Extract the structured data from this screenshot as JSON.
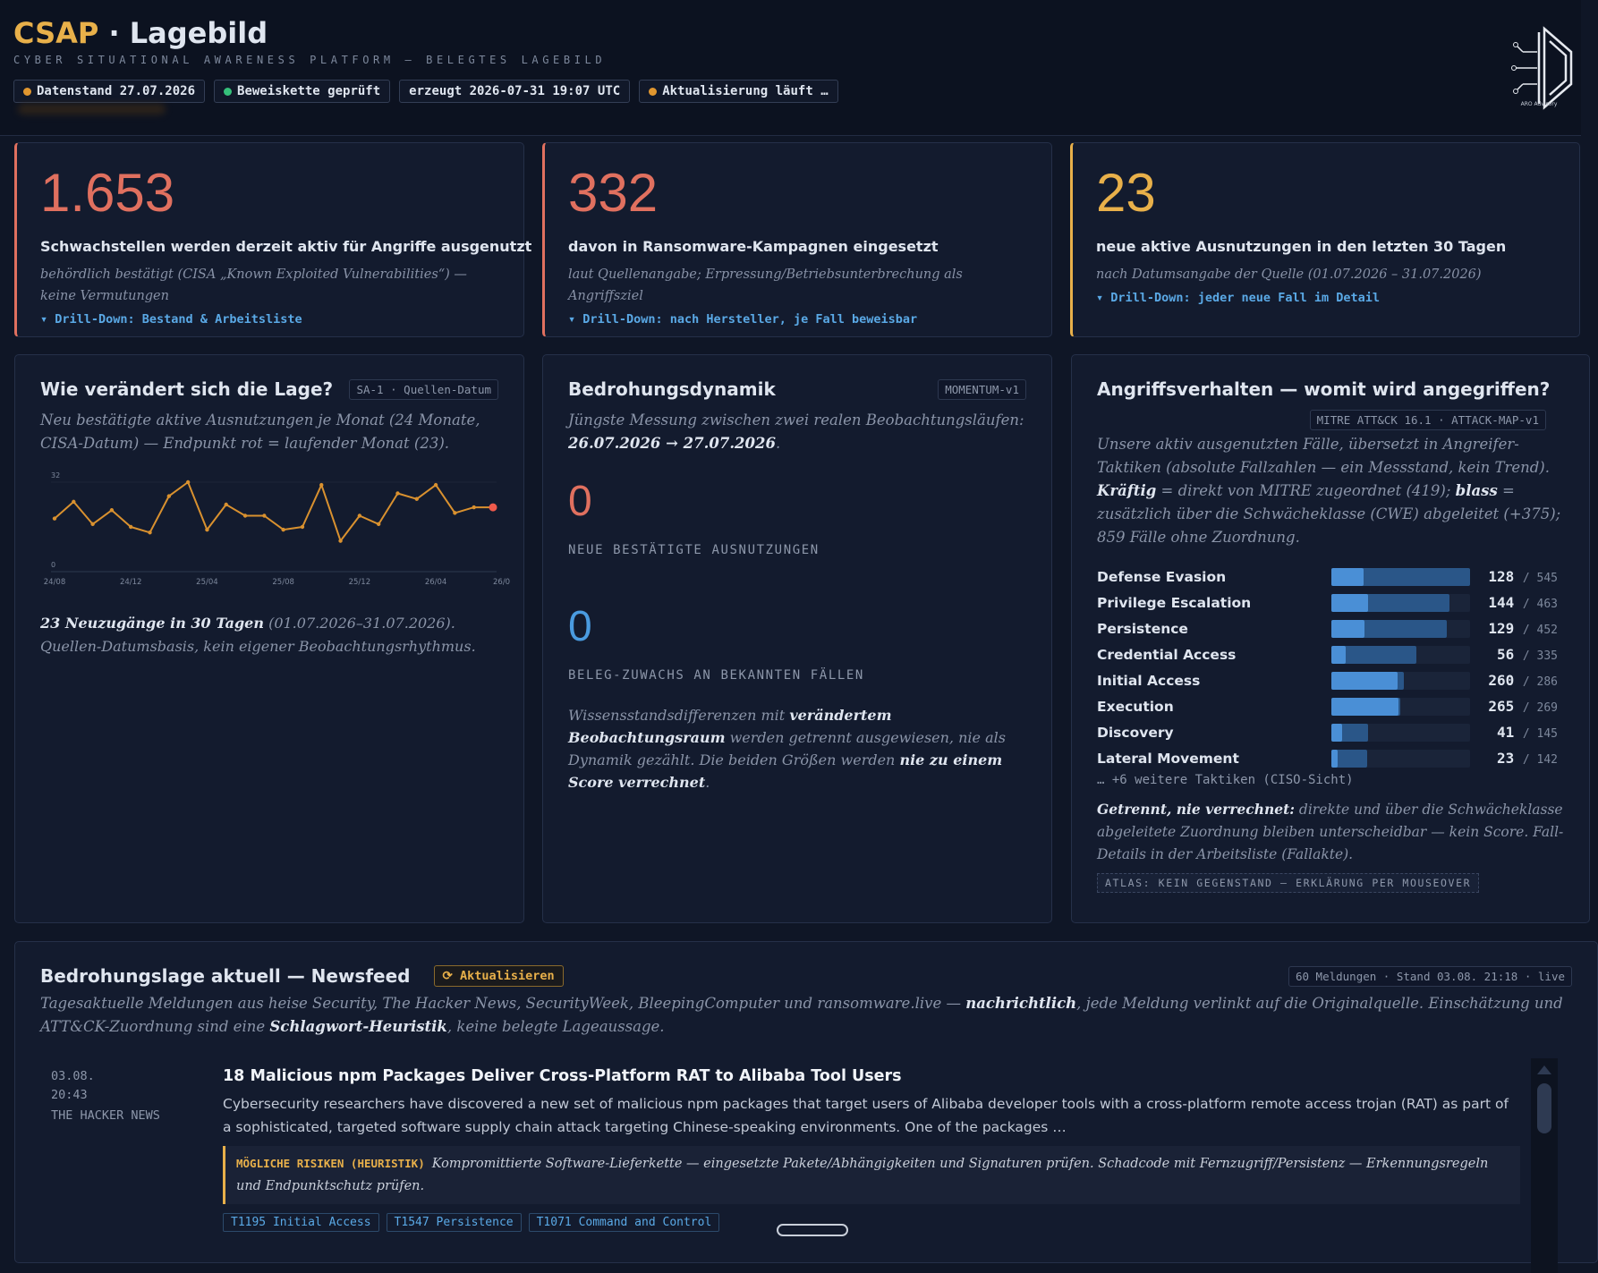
{
  "header": {
    "brand": "CSAP",
    "title": "· Lagebild",
    "subtitle": "CYBER SITUATIONAL AWARENESS PLATFORM — BELEGTES LAGEBILD",
    "chips": [
      {
        "text": "Datenstand 27.07.2026",
        "dot": "#e0962f"
      },
      {
        "text": "Beweiskette geprüft",
        "dot": "#35c07a"
      },
      {
        "text": "erzeugt 2026-07-31 19:07 UTC"
      },
      {
        "text": "Aktualisierung läuft …",
        "dot": "#e0962f"
      }
    ],
    "logo": "ARO Advisory"
  },
  "kpis": [
    {
      "value": "1.653",
      "color": "#e0705f",
      "label": "Schwachstellen werden derzeit aktiv für Angriffe ausgenutzt",
      "note": "behördlich bestätigt (CISA „Known Exploited Vulnerabilities“) — keine Vermutungen",
      "link": "▾ Drill-Down: Bestand & Arbeitsliste"
    },
    {
      "value": "332",
      "color": "#e0705f",
      "label": "davon in Ransomware-Kampagnen eingesetzt",
      "note": "laut Quellenangabe; Erpressung/Betriebsunterbrechung als Angriffsziel",
      "link": "▾ Drill-Down: nach Hersteller, je Fall beweisbar"
    },
    {
      "value": "23",
      "color": "#e8b04a",
      "label": "neue aktive Ausnutzungen in den letzten 30 Tagen",
      "note": "nach Datumsangabe der Quelle (01.07.2026 – 31.07.2026)",
      "link": "▾ Drill-Down: jeder neue Fall im Detail"
    }
  ],
  "trend": {
    "title": "Wie verändert sich die Lage?",
    "tag": "SA-1 · Quellen-Datum",
    "desc": "Neu bestätigte aktive Ausnutzungen je Monat (24 Monate, CISA-Datum) — Endpunkt rot = laufender Monat (23).",
    "chart": {
      "type": "line",
      "color": "#d9912f",
      "highlight_color": "#ef5a4c",
      "categories": [
        "24/08",
        null,
        null,
        null,
        "24/12",
        null,
        null,
        null,
        "25/04",
        null,
        null,
        null,
        "25/08",
        null,
        null,
        null,
        "25/12",
        null,
        null,
        null,
        "26/04",
        null,
        null,
        "26/0"
      ],
      "values": [
        19,
        25,
        17,
        22,
        16,
        14,
        27,
        32,
        15,
        24,
        20,
        20,
        15,
        16,
        31,
        11,
        20,
        17,
        28,
        26,
        31,
        21,
        23,
        23
      ],
      "ylim": [
        0,
        32
      ],
      "yticks": [
        0,
        32
      ]
    },
    "footer": [
      {
        "text": "23 Neuzugänge in 30 Tagen",
        "strong": true
      },
      {
        "text": " (01.07.2026–31.07.2026). Quellen-Datumsbasis, kein eigener Beobachtungsrhythmus."
      }
    ]
  },
  "dynamics": {
    "title": "Bedrohungsdynamik",
    "tag": "MOMENTUM-v1",
    "desc": [
      {
        "text": "Jüngste Messung zwischen zwei realen Beobachtungsläufen: "
      },
      {
        "text": "26.07.2026 → 27.07.2026",
        "strong": true
      },
      {
        "text": "."
      }
    ],
    "metrics": [
      {
        "value": 0,
        "label": "NEUE BESTÄTIGTE AUSNUTZUNGEN",
        "color": "#e0705f"
      },
      {
        "value": 0,
        "label": "BELEG-ZUWACHS AN BEKANNTEN FÄLLEN",
        "color": "#4a9be0"
      }
    ],
    "note": [
      {
        "text": "Wissensstandsdifferenzen mit "
      },
      {
        "text": "verändertem Beobachtungsraum",
        "strong": true
      },
      {
        "text": " werden getrennt ausgewiesen, nie als Dynamik gezählt. Die beiden Größen werden "
      },
      {
        "text": "nie zu einem Score verrechnet",
        "strong": true
      },
      {
        "text": "."
      }
    ]
  },
  "tactics": {
    "title": "Angriffsverhalten — womit wird angegriffen?",
    "tag": "MITRE ATT&CK 16.1 · ATTACK-MAP-v1",
    "desc": [
      {
        "text": "Unsere aktiv ausgenutzten Fälle, übersetzt in Angreifer-Taktiken (absolute Fallzahlen — ein Messstand, kein Trend). "
      },
      {
        "text": "Kräftig",
        "strong": true
      },
      {
        "text": " = direkt von MITRE zugeordnet (419); "
      },
      {
        "text": "blass",
        "strong": true
      },
      {
        "text": " = zusätzlich über die Schwächeklasse (CWE) abgeleitet (+375); 859 Fälle ohne Zuordnung."
      }
    ],
    "rows": [
      {
        "name": "Defense Evasion",
        "direct": 128,
        "total": 545
      },
      {
        "name": "Privilege Escalation",
        "direct": 144,
        "total": 463
      },
      {
        "name": "Persistence",
        "direct": 129,
        "total": 452
      },
      {
        "name": "Credential Access",
        "direct": 56,
        "total": 335
      },
      {
        "name": "Initial Access",
        "direct": 260,
        "total": 286
      },
      {
        "name": "Execution",
        "direct": 265,
        "total": 269
      },
      {
        "name": "Discovery",
        "direct": 41,
        "total": 145
      },
      {
        "name": "Lateral Movement",
        "direct": 23,
        "total": 142
      }
    ],
    "more": "… +6 weitere Taktiken (CISO-Sicht)",
    "footer": [
      {
        "text": "Getrennt, nie verrechnet:",
        "strong": true
      },
      {
        "text": " direkte und über die Schwächeklasse abgeleitete Zuordnung bleiben unterscheidbar — kein Score. Fall-Details in der Arbeitsliste (Fallakte)."
      }
    ],
    "badge": "ATLAS: KEIN GEGENSTAND — ERKLÄRUNG PER MOUSEOVER"
  },
  "newsfeed": {
    "title": "Bedrohungslage aktuell — Newsfeed",
    "button": "⟳ Aktualisieren",
    "tag": "60 Meldungen · Stand 03.08. 21:18 · live",
    "desc": [
      {
        "text": "Tagesaktuelle Meldungen aus heise Security, The Hacker News, SecurityWeek, BleepingComputer und ransomware.live — "
      },
      {
        "text": "nachrichtlich",
        "strong": true
      },
      {
        "text": ", jede Meldung verlinkt auf die Originalquelle. Einschätzung und ATT&CK-Zuordnung sind eine "
      },
      {
        "text": "Schlagwort-Heuristik",
        "strong": true
      },
      {
        "text": ", keine belegte Lageaussage."
      }
    ],
    "items": [
      {
        "date": "03.08.",
        "time": "20:43",
        "source": "THE HACKER NEWS",
        "headline": "18 Malicious npm Packages Deliver Cross-Platform RAT to Alibaba Tool Users",
        "summary": "Cybersecurity researchers have discovered a new set of malicious npm packages that target users of Alibaba developer tools with a cross-platform remote access trojan (RAT) as part of a sophisticated, targeted software supply chain attack targeting Chinese-speaking environments. One of the packages …",
        "risk_label": "MÖGLICHE RISIKEN (HEURISTIK)",
        "risk": "Kompromittierte Software-Lieferkette — eingesetzte Pakete/Abhängigkeiten und Signaturen prüfen. Schadcode mit Fernzugriff/Persistenz — Erkennungsregeln und Endpunktschutz prüfen.",
        "tags": [
          "T1195 Initial Access",
          "T1547 Persistence",
          "T1071 Command and Control"
        ]
      }
    ]
  }
}
